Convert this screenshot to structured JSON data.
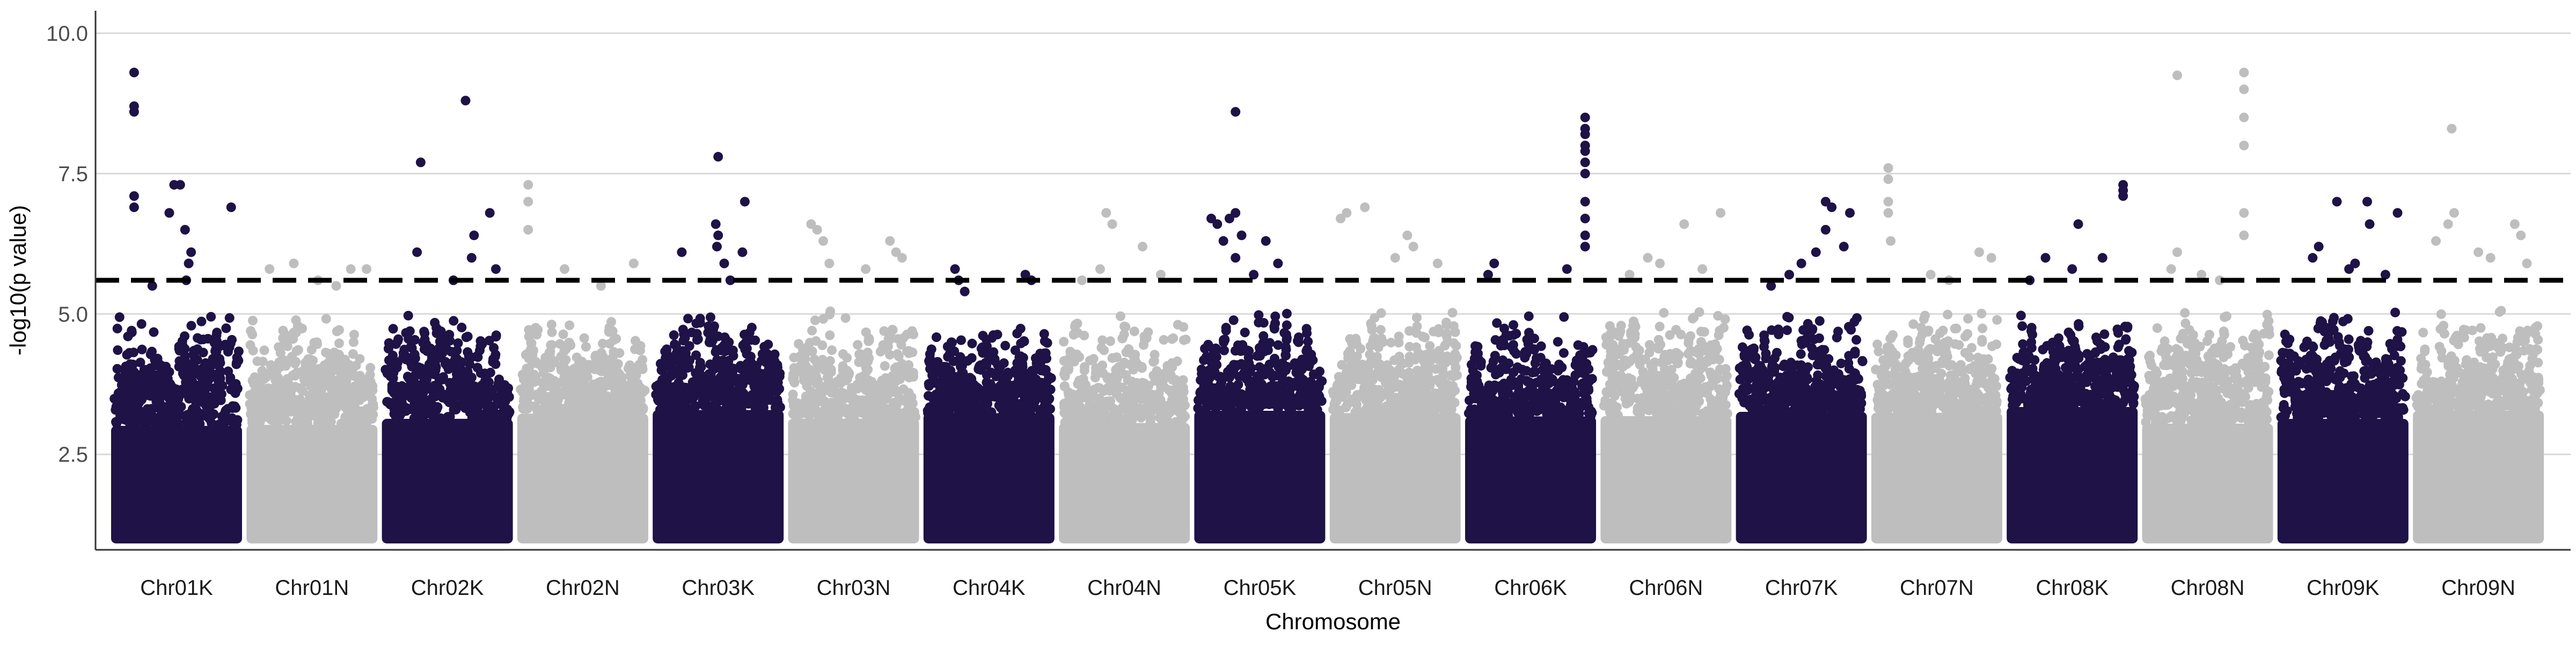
{
  "chart_data": {
    "type": "scatter",
    "title": "",
    "xlabel": "Chromosome",
    "ylabel": "-log10(p value)",
    "ylim": [
      0.8,
      10.4
    ],
    "yticks": [
      2.5,
      5.0,
      7.5,
      10.0
    ],
    "ytick_labels": [
      "2.5",
      "5.0",
      "7.5",
      "10.0"
    ],
    "threshold": 5.6,
    "grid": "horizontal major lines",
    "legend": "none",
    "colors": {
      "K_chromosomes": "#1e1246",
      "N_chromosomes": "#bebebe",
      "threshold_line": "#000000",
      "grid": "#d9d9d9",
      "axis": "#333333"
    },
    "categories": [
      "Chr01K",
      "Chr01N",
      "Chr02K",
      "Chr02N",
      "Chr03K",
      "Chr03N",
      "Chr04K",
      "Chr04N",
      "Chr05K",
      "Chr05N",
      "Chr06K",
      "Chr06N",
      "Chr07K",
      "Chr07N",
      "Chr08K",
      "Chr08N",
      "Chr09K",
      "Chr09N"
    ],
    "series": [
      {
        "category": "Chr01K",
        "max": 9.3,
        "top_points": [
          [
            0.15,
            9.3
          ],
          [
            0.15,
            8.7
          ],
          [
            0.15,
            8.6
          ],
          [
            0.48,
            7.3
          ],
          [
            0.53,
            7.3
          ],
          [
            0.15,
            7.1
          ],
          [
            0.15,
            6.9
          ],
          [
            0.44,
            6.8
          ],
          [
            0.57,
            6.5
          ],
          [
            0.62,
            6.1
          ],
          [
            0.6,
            5.9
          ],
          [
            0.58,
            5.6
          ],
          [
            0.3,
            5.5
          ],
          [
            0.95,
            6.9
          ]
        ]
      },
      {
        "category": "Chr01N",
        "max": 5.9,
        "top_points": [
          [
            0.35,
            5.9
          ],
          [
            0.15,
            5.8
          ],
          [
            0.82,
            5.8
          ],
          [
            0.55,
            5.6
          ],
          [
            0.7,
            5.5
          ],
          [
            0.95,
            5.8
          ]
        ]
      },
      {
        "category": "Chr02K",
        "max": 8.8,
        "top_points": [
          [
            0.65,
            8.8
          ],
          [
            0.28,
            7.7
          ],
          [
            0.85,
            6.8
          ],
          [
            0.72,
            6.4
          ],
          [
            0.25,
            6.1
          ],
          [
            0.7,
            6.0
          ],
          [
            0.9,
            5.8
          ],
          [
            0.55,
            5.6
          ]
        ]
      },
      {
        "category": "Chr02N",
        "max": 7.3,
        "top_points": [
          [
            0.05,
            7.3
          ],
          [
            0.05,
            7.0
          ],
          [
            0.05,
            6.5
          ],
          [
            0.35,
            5.8
          ],
          [
            0.92,
            5.9
          ],
          [
            0.65,
            5.5
          ]
        ]
      },
      {
        "category": "Chr03K",
        "max": 7.8,
        "top_points": [
          [
            0.5,
            7.8
          ],
          [
            0.72,
            7.0
          ],
          [
            0.48,
            6.6
          ],
          [
            0.5,
            6.4
          ],
          [
            0.49,
            6.2
          ],
          [
            0.7,
            6.1
          ],
          [
            0.2,
            6.1
          ],
          [
            0.55,
            5.9
          ],
          [
            0.6,
            5.6
          ]
        ]
      },
      {
        "category": "Chr03N",
        "max": 6.6,
        "top_points": [
          [
            0.15,
            6.6
          ],
          [
            0.2,
            6.5
          ],
          [
            0.25,
            6.3
          ],
          [
            0.8,
            6.3
          ],
          [
            0.85,
            6.1
          ],
          [
            0.9,
            6.0
          ],
          [
            0.3,
            5.9
          ],
          [
            0.6,
            5.8
          ]
        ]
      },
      {
        "category": "Chr04K",
        "max": 5.8,
        "top_points": [
          [
            0.22,
            5.8
          ],
          [
            0.25,
            5.6
          ],
          [
            0.8,
            5.7
          ],
          [
            0.85,
            5.6
          ],
          [
            0.3,
            5.4
          ]
        ]
      },
      {
        "category": "Chr04N",
        "max": 6.8,
        "top_points": [
          [
            0.35,
            6.8
          ],
          [
            0.4,
            6.6
          ],
          [
            0.65,
            6.2
          ],
          [
            0.3,
            5.8
          ],
          [
            0.15,
            5.6
          ],
          [
            0.8,
            5.7
          ]
        ]
      },
      {
        "category": "Chr05K",
        "max": 8.6,
        "top_points": [
          [
            0.3,
            8.6
          ],
          [
            0.3,
            6.8
          ],
          [
            0.25,
            6.7
          ],
          [
            0.1,
            6.7
          ],
          [
            0.15,
            6.6
          ],
          [
            0.35,
            6.4
          ],
          [
            0.2,
            6.3
          ],
          [
            0.55,
            6.3
          ],
          [
            0.3,
            6.0
          ],
          [
            0.65,
            5.9
          ],
          [
            0.45,
            5.7
          ]
        ]
      },
      {
        "category": "Chr05N",
        "max": 6.9,
        "top_points": [
          [
            0.25,
            6.9
          ],
          [
            0.05,
            6.7
          ],
          [
            0.1,
            6.8
          ],
          [
            0.6,
            6.4
          ],
          [
            0.65,
            6.2
          ],
          [
            0.5,
            6.0
          ],
          [
            0.85,
            5.9
          ]
        ]
      },
      {
        "category": "Chr06K",
        "max": 8.5,
        "top_points": [
          [
            0.95,
            8.5
          ],
          [
            0.95,
            8.3
          ],
          [
            0.95,
            8.2
          ],
          [
            0.95,
            8.0
          ],
          [
            0.95,
            7.9
          ],
          [
            0.95,
            7.7
          ],
          [
            0.95,
            7.5
          ],
          [
            0.95,
            7.0
          ],
          [
            0.95,
            6.7
          ],
          [
            0.95,
            6.4
          ],
          [
            0.95,
            6.2
          ],
          [
            0.2,
            5.9
          ],
          [
            0.15,
            5.7
          ],
          [
            0.8,
            5.8
          ]
        ]
      },
      {
        "category": "Chr06N",
        "max": 6.8,
        "top_points": [
          [
            0.95,
            6.8
          ],
          [
            0.65,
            6.6
          ],
          [
            0.35,
            6.0
          ],
          [
            0.45,
            5.9
          ],
          [
            0.8,
            5.8
          ],
          [
            0.2,
            5.7
          ]
        ]
      },
      {
        "category": "Chr07K",
        "max": 7.0,
        "top_points": [
          [
            0.7,
            7.0
          ],
          [
            0.75,
            6.9
          ],
          [
            0.9,
            6.8
          ],
          [
            0.7,
            6.5
          ],
          [
            0.62,
            6.1
          ],
          [
            0.85,
            6.2
          ],
          [
            0.5,
            5.9
          ],
          [
            0.4,
            5.7
          ],
          [
            0.25,
            5.5
          ]
        ]
      },
      {
        "category": "Chr07N",
        "max": 7.6,
        "top_points": [
          [
            0.1,
            7.6
          ],
          [
            0.1,
            7.4
          ],
          [
            0.1,
            7.0
          ],
          [
            0.1,
            6.8
          ],
          [
            0.12,
            6.3
          ],
          [
            0.85,
            6.1
          ],
          [
            0.95,
            6.0
          ],
          [
            0.45,
            5.7
          ],
          [
            0.6,
            5.6
          ]
        ]
      },
      {
        "category": "Chr08K",
        "max": 7.3,
        "top_points": [
          [
            0.92,
            7.3
          ],
          [
            0.92,
            7.2
          ],
          [
            0.92,
            7.1
          ],
          [
            0.55,
            6.6
          ],
          [
            0.28,
            6.0
          ],
          [
            0.75,
            6.0
          ],
          [
            0.5,
            5.8
          ],
          [
            0.15,
            5.6
          ]
        ]
      },
      {
        "category": "Chr08N",
        "max": 9.3,
        "top_points": [
          [
            0.25,
            9.25
          ],
          [
            0.8,
            9.3
          ],
          [
            0.8,
            9.0
          ],
          [
            0.8,
            8.5
          ],
          [
            0.8,
            8.0
          ],
          [
            0.8,
            6.8
          ],
          [
            0.8,
            6.4
          ],
          [
            0.25,
            6.1
          ],
          [
            0.2,
            5.8
          ],
          [
            0.45,
            5.7
          ],
          [
            0.6,
            5.6
          ]
        ]
      },
      {
        "category": "Chr09K",
        "max": 7.0,
        "top_points": [
          [
            0.45,
            7.0
          ],
          [
            0.7,
            7.0
          ],
          [
            0.95,
            6.8
          ],
          [
            0.72,
            6.6
          ],
          [
            0.3,
            6.2
          ],
          [
            0.25,
            6.0
          ],
          [
            0.6,
            5.9
          ],
          [
            0.55,
            5.8
          ],
          [
            0.85,
            5.7
          ]
        ]
      },
      {
        "category": "Chr09N",
        "max": 8.3,
        "top_points": [
          [
            0.28,
            8.3
          ],
          [
            0.3,
            6.8
          ],
          [
            0.25,
            6.6
          ],
          [
            0.8,
            6.6
          ],
          [
            0.85,
            6.4
          ],
          [
            0.15,
            6.3
          ],
          [
            0.5,
            6.1
          ],
          [
            0.6,
            6.0
          ],
          [
            0.9,
            5.9
          ]
        ]
      }
    ]
  }
}
